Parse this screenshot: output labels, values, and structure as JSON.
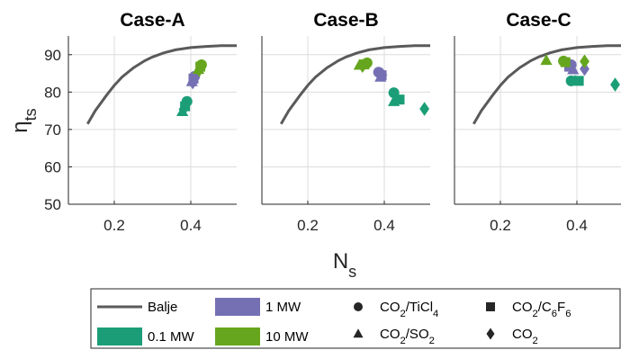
{
  "chart_data": {
    "type": "scatter",
    "ylabel": {
      "main": "η",
      "sub": "ts"
    },
    "xlabel": {
      "main": "N",
      "sub": "s"
    },
    "xlim": [
      0.08,
      0.52
    ],
    "ylim": [
      50,
      95
    ],
    "xticks": [
      0.2,
      0.4
    ],
    "yticks": [
      50,
      60,
      70,
      80,
      90
    ],
    "grid": true,
    "colors": {
      "0.1 MW": "#1b9e77",
      "1 MW": "#7570b3",
      "10 MW": "#66a61e",
      "Balje": "#5a5a5a"
    },
    "balje": {
      "x": [
        0.13,
        0.15,
        0.18,
        0.2,
        0.22,
        0.25,
        0.28,
        0.3,
        0.33,
        0.36,
        0.4,
        0.44,
        0.48,
        0.52
      ],
      "y": [
        71.5,
        75,
        79.2,
        81.8,
        84,
        86.5,
        88.4,
        89.4,
        90.5,
        91.3,
        91.9,
        92.2,
        92.4,
        92.4
      ]
    },
    "panels": [
      {
        "title": "Case-A",
        "points": [
          {
            "fluid": "CO2/TiCl4",
            "power": "0.1 MW",
            "x": 0.39,
            "y": 77.5
          },
          {
            "fluid": "CO2/C6F6",
            "power": "0.1 MW",
            "x": 0.385,
            "y": 76.2
          },
          {
            "fluid": "CO2/SO2",
            "power": "0.1 MW",
            "x": 0.378,
            "y": 74.8
          },
          {
            "fluid": "CO2",
            "power": "0.1 MW",
            "x": 0.381,
            "y": 75.4
          },
          {
            "fluid": "CO2/TiCl4",
            "power": "1 MW",
            "x": 0.41,
            "y": 84.2
          },
          {
            "fluid": "CO2/C6F6",
            "power": "1 MW",
            "x": 0.407,
            "y": 83.6
          },
          {
            "fluid": "CO2/SO2",
            "power": "1 MW",
            "x": 0.403,
            "y": 82.8
          },
          {
            "fluid": "CO2",
            "power": "1 MW",
            "x": 0.405,
            "y": 82.6
          },
          {
            "fluid": "CO2/TiCl4",
            "power": "10 MW",
            "x": 0.428,
            "y": 87.3
          },
          {
            "fluid": "CO2/C6F6",
            "power": "10 MW",
            "x": 0.425,
            "y": 86.8
          },
          {
            "fluid": "CO2/SO2",
            "power": "10 MW",
            "x": 0.42,
            "y": 86.1
          },
          {
            "fluid": "CO2",
            "power": "10 MW",
            "x": 0.422,
            "y": 85.9
          }
        ]
      },
      {
        "title": "Case-B",
        "points": [
          {
            "fluid": "CO2/TiCl4",
            "power": "0.1 MW",
            "x": 0.425,
            "y": 79.8
          },
          {
            "fluid": "CO2/C6F6",
            "power": "0.1 MW",
            "x": 0.44,
            "y": 78.0
          },
          {
            "fluid": "CO2/SO2",
            "power": "0.1 MW",
            "x": 0.425,
            "y": 77.5
          },
          {
            "fluid": "CO2",
            "power": "0.1 MW",
            "x": 0.505,
            "y": 75.5
          },
          {
            "fluid": "CO2/TiCl4",
            "power": "1 MW",
            "x": 0.385,
            "y": 85.3
          },
          {
            "fluid": "CO2/C6F6",
            "power": "1 MW",
            "x": 0.393,
            "y": 84.5
          },
          {
            "fluid": "CO2/SO2",
            "power": "1 MW",
            "x": 0.39,
            "y": 84.0
          },
          {
            "fluid": "CO2",
            "power": "1 MW",
            "x": 0.395,
            "y": 84.6
          },
          {
            "fluid": "CO2/TiCl4",
            "power": "10 MW",
            "x": 0.355,
            "y": 87.8
          },
          {
            "fluid": "CO2/C6F6",
            "power": "10 MW",
            "x": 0.348,
            "y": 87.4
          },
          {
            "fluid": "CO2/SO2",
            "power": "10 MW",
            "x": 0.335,
            "y": 87.2
          },
          {
            "fluid": "CO2",
            "power": "10 MW",
            "x": 0.343,
            "y": 87.0
          }
        ]
      },
      {
        "title": "Case-C",
        "points": [
          {
            "fluid": "CO2/TiCl4",
            "power": "0.1 MW",
            "x": 0.385,
            "y": 83.0
          },
          {
            "fluid": "CO2/C6F6",
            "power": "0.1 MW",
            "x": 0.405,
            "y": 83.0
          },
          {
            "fluid": "CO2/SO2",
            "power": "0.1 MW",
            "x": 0.395,
            "y": 83.0
          },
          {
            "fluid": "CO2",
            "power": "0.1 MW",
            "x": 0.5,
            "y": 82.0
          },
          {
            "fluid": "CO2/TiCl4",
            "power": "1 MW",
            "x": 0.385,
            "y": 87.3
          },
          {
            "fluid": "CO2/C6F6",
            "power": "1 MW",
            "x": 0.38,
            "y": 86.8
          },
          {
            "fluid": "CO2/SO2",
            "power": "1 MW",
            "x": 0.39,
            "y": 86.0
          },
          {
            "fluid": "CO2",
            "power": "1 MW",
            "x": 0.42,
            "y": 86.2
          },
          {
            "fluid": "CO2/TiCl4",
            "power": "10 MW",
            "x": 0.365,
            "y": 88.3
          },
          {
            "fluid": "CO2/C6F6",
            "power": "10 MW",
            "x": 0.37,
            "y": 88.0
          },
          {
            "fluid": "CO2/SO2",
            "power": "10 MW",
            "x": 0.32,
            "y": 88.5
          },
          {
            "fluid": "CO2",
            "power": "10 MW",
            "x": 0.42,
            "y": 88.2
          }
        ]
      }
    ],
    "legend": {
      "placement": "bottom",
      "line_entries": [
        {
          "label": "Balje",
          "color": "#5a5a5a"
        },
        {
          "label": "1 MW",
          "color": "#7570b3"
        },
        {
          "label": "0.1 MW",
          "color": "#1b9e77"
        },
        {
          "label": "10 MW",
          "color": "#66a61e"
        }
      ],
      "marker_entries": [
        {
          "marker": "circle",
          "base": "CO",
          "sub1": "2",
          "mid": "/TiCl",
          "sub2": "4",
          "tail": "",
          "sub3": ""
        },
        {
          "marker": "square",
          "base": "CO",
          "sub1": "2",
          "mid": "/C",
          "sub2": "6",
          "tail": "F",
          "sub3": "6"
        },
        {
          "marker": "triangle",
          "base": "CO",
          "sub1": "2",
          "mid": "/SO",
          "sub2": "2",
          "tail": "",
          "sub3": ""
        },
        {
          "marker": "diamond",
          "base": "CO",
          "sub1": "2",
          "mid": "",
          "sub2": "",
          "tail": "",
          "sub3": ""
        }
      ]
    }
  }
}
